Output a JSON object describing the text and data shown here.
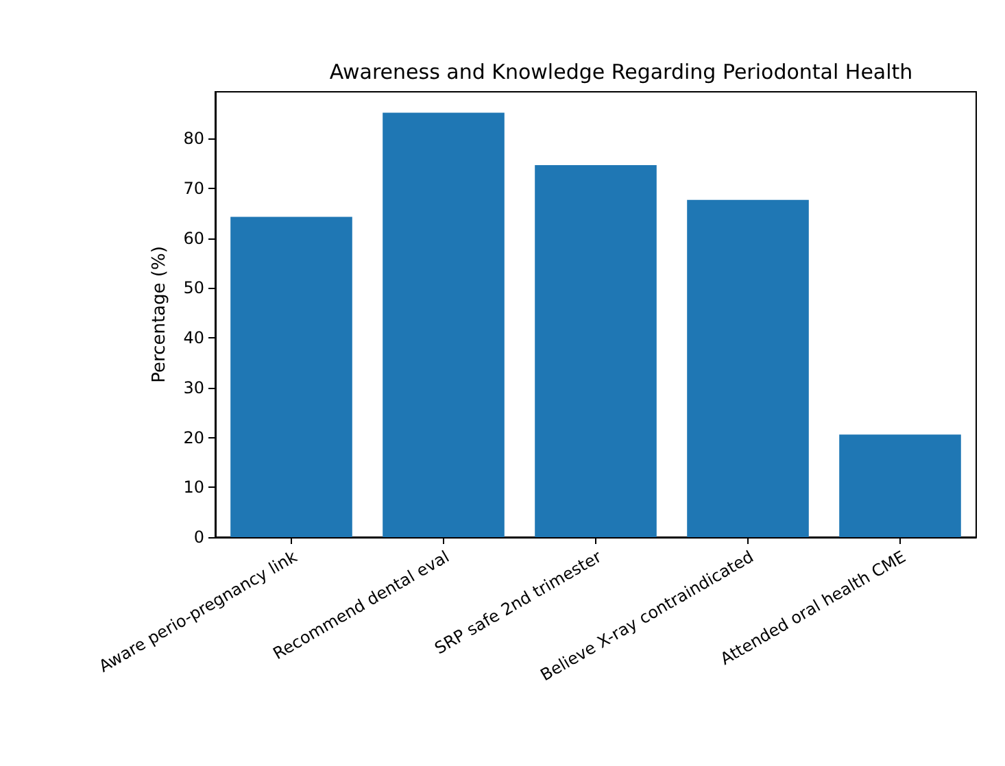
{
  "chart_data": {
    "type": "bar",
    "title": "Awareness and Knowledge Regarding Periodontal Health",
    "ylabel": "Percentage (%)",
    "categories": [
      "Aware perio-pregnancy link",
      "Recommend dental eval",
      "SRP safe 2nd trimester",
      "Believe X-ray contraindicated",
      "Attended oral health CME"
    ],
    "values": [
      64.3,
      85.2,
      74.7,
      67.7,
      20.6
    ],
    "color": "#1f77b4",
    "ylim": [
      0,
      89.4
    ],
    "yticks": [
      0,
      10,
      20,
      30,
      40,
      50,
      60,
      70,
      80
    ],
    "grid": false
  }
}
